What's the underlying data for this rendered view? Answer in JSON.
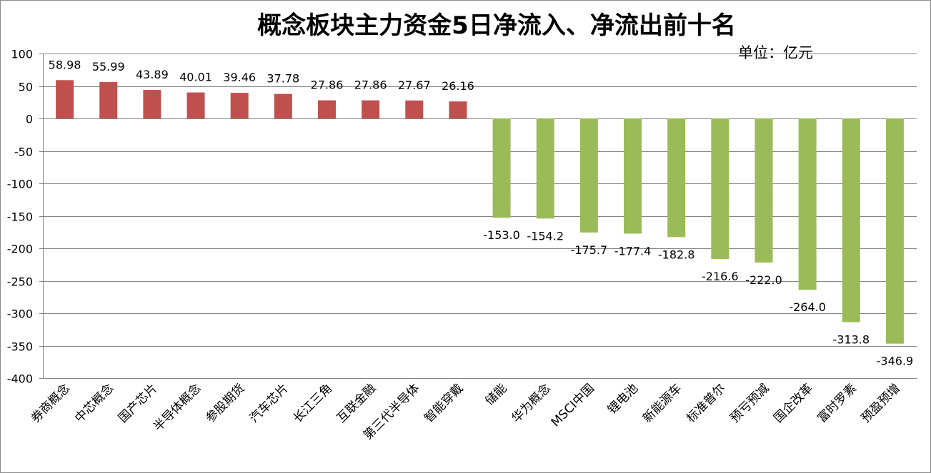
{
  "chart_data": {
    "type": "bar",
    "title": "概念板块主力资金5日净流入、净流出前十名",
    "unit": "单位：亿元",
    "ylim": [
      -400,
      100
    ],
    "yticks": [
      100,
      50,
      0,
      -50,
      -100,
      -150,
      -200,
      -250,
      -300,
      -350,
      -400
    ],
    "grid": true,
    "categories": [
      "券商概念",
      "中芯概念",
      "国产芯片",
      "半导体概念",
      "参股期货",
      "汽车芯片",
      "长江三角",
      "互联金融",
      "第三代半导体",
      "智能穿戴",
      "储能",
      "华为概念",
      "MSCI中国",
      "锂电池",
      "新能源车",
      "标准普尔",
      "预亏预减",
      "国企改革",
      "富时罗素",
      "预盈预增"
    ],
    "values": [
      58.98,
      55.99,
      43.89,
      40.01,
      39.46,
      37.78,
      27.86,
      27.86,
      27.67,
      26.16,
      -153.0,
      -154.2,
      -175.7,
      -177.4,
      -182.8,
      -216.6,
      -222.0,
      -264.0,
      -313.8,
      -346.9
    ],
    "value_labels": [
      "58.98",
      "55.99",
      "43.89",
      "40.01",
      "39.46",
      "37.78",
      "27.86",
      "27.86",
      "27.67",
      "26.16",
      "-153.0",
      "-154.2",
      "-175.7",
      "-177.4",
      "-182.8",
      "-216.6",
      "-222.0",
      "-264.0",
      "-313.8",
      "-346.9"
    ],
    "colors": {
      "positive": "#c0504d",
      "negative": "#9bbb59",
      "grid": "#868686"
    }
  }
}
